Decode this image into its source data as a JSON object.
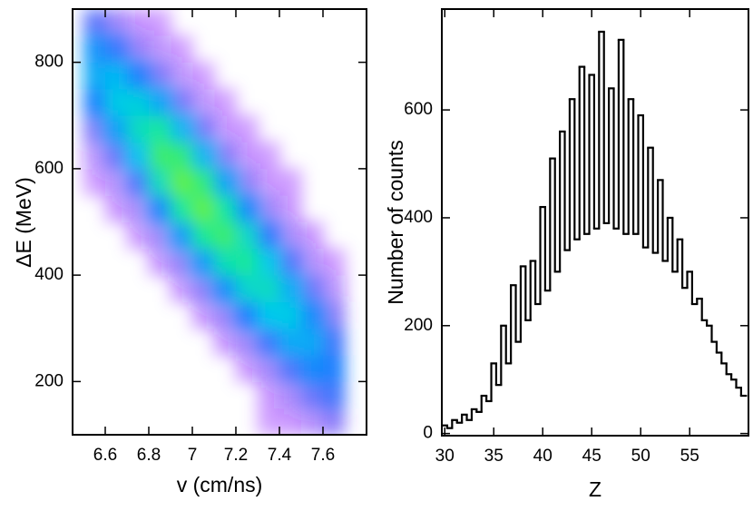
{
  "chart_data": [
    {
      "type": "heatmap",
      "xlabel": "v (cm/ns)",
      "ylabel": "ΔE (MeV)",
      "xbins": [
        6.5,
        6.6,
        6.7,
        6.8,
        6.9,
        7.0,
        7.1,
        7.2,
        7.3,
        7.4,
        7.5,
        7.6,
        7.7
      ],
      "ybins": [
        100,
        150,
        200,
        250,
        300,
        350,
        400,
        450,
        500,
        550,
        600,
        650,
        700,
        750,
        800,
        850,
        900
      ],
      "values": [
        [
          0,
          0,
          0,
          0,
          0,
          0,
          0,
          0,
          0,
          0.1,
          0.5,
          1.5,
          3.0,
          4.0,
          3.5,
          2.0
        ],
        [
          0,
          0,
          0,
          0,
          0,
          0,
          0,
          0,
          0.2,
          0.6,
          1.9,
          3.7,
          5.0,
          4.4,
          2.6,
          1.0
        ],
        [
          0,
          0,
          0,
          0,
          0,
          0,
          0,
          0.2,
          0.8,
          2.3,
          4.6,
          6.0,
          5.2,
          3.0,
          1.1,
          0.3
        ],
        [
          0,
          0,
          0,
          0,
          0,
          0,
          0.3,
          1.0,
          3.1,
          6.1,
          8.0,
          6.9,
          3.9,
          1.5,
          0.4,
          0.1
        ],
        [
          0,
          0,
          0,
          0,
          0,
          0.3,
          1.2,
          3.6,
          6.9,
          9.0,
          7.7,
          4.3,
          1.6,
          0.4,
          0.1,
          0
        ],
        [
          0,
          0,
          0,
          0,
          0.3,
          1.3,
          3.6,
          7.0,
          9.0,
          7.6,
          4.3,
          1.6,
          0.4,
          0.1,
          0,
          0
        ],
        [
          0,
          0,
          0,
          0.3,
          1.1,
          3.3,
          6.3,
          8.0,
          6.7,
          3.8,
          1.4,
          0.3,
          0.1,
          0,
          0,
          0
        ],
        [
          0,
          0,
          0.2,
          1.0,
          2.9,
          5.6,
          7.0,
          5.8,
          3.2,
          1.2,
          0.3,
          0.1,
          0,
          0,
          0,
          0
        ],
        [
          0.1,
          0.2,
          0.9,
          2.5,
          4.8,
          6.0,
          4.9,
          2.7,
          1.0,
          0.2,
          0.1,
          0,
          0,
          0,
          0,
          0
        ],
        [
          0.2,
          0.8,
          2.2,
          4.0,
          5.0,
          4.1,
          2.2,
          0.8,
          0.2,
          0.1,
          0,
          0,
          0,
          0,
          0,
          0
        ],
        [
          0.6,
          1.8,
          3.2,
          4.0,
          3.2,
          1.8,
          0.6,
          0.2,
          0,
          0,
          0,
          0,
          0,
          0,
          0,
          0
        ],
        [
          1.3,
          2.4,
          3.0,
          2.4,
          1.3,
          0.5,
          0.1,
          0,
          0,
          0,
          0,
          0,
          0,
          0,
          0,
          0
        ]
      ],
      "colormap": [
        "#8a00ff",
        "#4b2cf5",
        "#1f7aff",
        "#00c8f0",
        "#10e8a0",
        "#60f040"
      ],
      "xlim": [
        6.45,
        7.8
      ],
      "ylim": [
        100,
        900
      ],
      "xticks": [
        6.6,
        6.8,
        7,
        7.2,
        7.4,
        7.6
      ],
      "yticks": [
        200,
        400,
        600,
        800
      ]
    },
    {
      "type": "histogram",
      "xlabel": "Z",
      "ylabel": "Number of counts",
      "bins": [
        29.75,
        30.25,
        30.75,
        31.25,
        31.75,
        32.25,
        32.75,
        33.25,
        33.75,
        34.25,
        34.75,
        35.25,
        35.75,
        36.25,
        36.75,
        37.25,
        37.75,
        38.25,
        38.75,
        39.25,
        39.75,
        40.25,
        40.75,
        41.25,
        41.75,
        42.25,
        42.75,
        43.25,
        43.75,
        44.25,
        44.75,
        45.25,
        45.75,
        46.25,
        46.75,
        47.25,
        47.75,
        48.25,
        48.75,
        49.25,
        49.75,
        50.25,
        50.75,
        51.25,
        51.75,
        52.25,
        52.75,
        53.25,
        53.75,
        54.25,
        54.75,
        55.25,
        55.75,
        56.25,
        56.75,
        57.25,
        57.75,
        58.25,
        58.75,
        59.25,
        59.75,
        60.25,
        60.75
      ],
      "values": [
        15,
        10,
        25,
        20,
        35,
        25,
        45,
        40,
        70,
        60,
        130,
        90,
        200,
        130,
        275,
        170,
        310,
        210,
        320,
        240,
        420,
        265,
        510,
        300,
        560,
        340,
        620,
        360,
        680,
        370,
        665,
        380,
        745,
        390,
        640,
        380,
        730,
        370,
        620,
        370,
        590,
        345,
        530,
        335,
        470,
        320,
        400,
        300,
        360,
        270,
        300,
        240,
        250,
        210,
        200,
        170,
        150,
        130,
        110,
        100,
        85,
        70
      ],
      "color": "#000000",
      "xlim": [
        29.7,
        61
      ],
      "ylim": [
        -4,
        787
      ],
      "xticks": [
        30,
        35,
        40,
        45,
        50,
        55
      ],
      "yticks": [
        0,
        200,
        400,
        600
      ]
    }
  ]
}
